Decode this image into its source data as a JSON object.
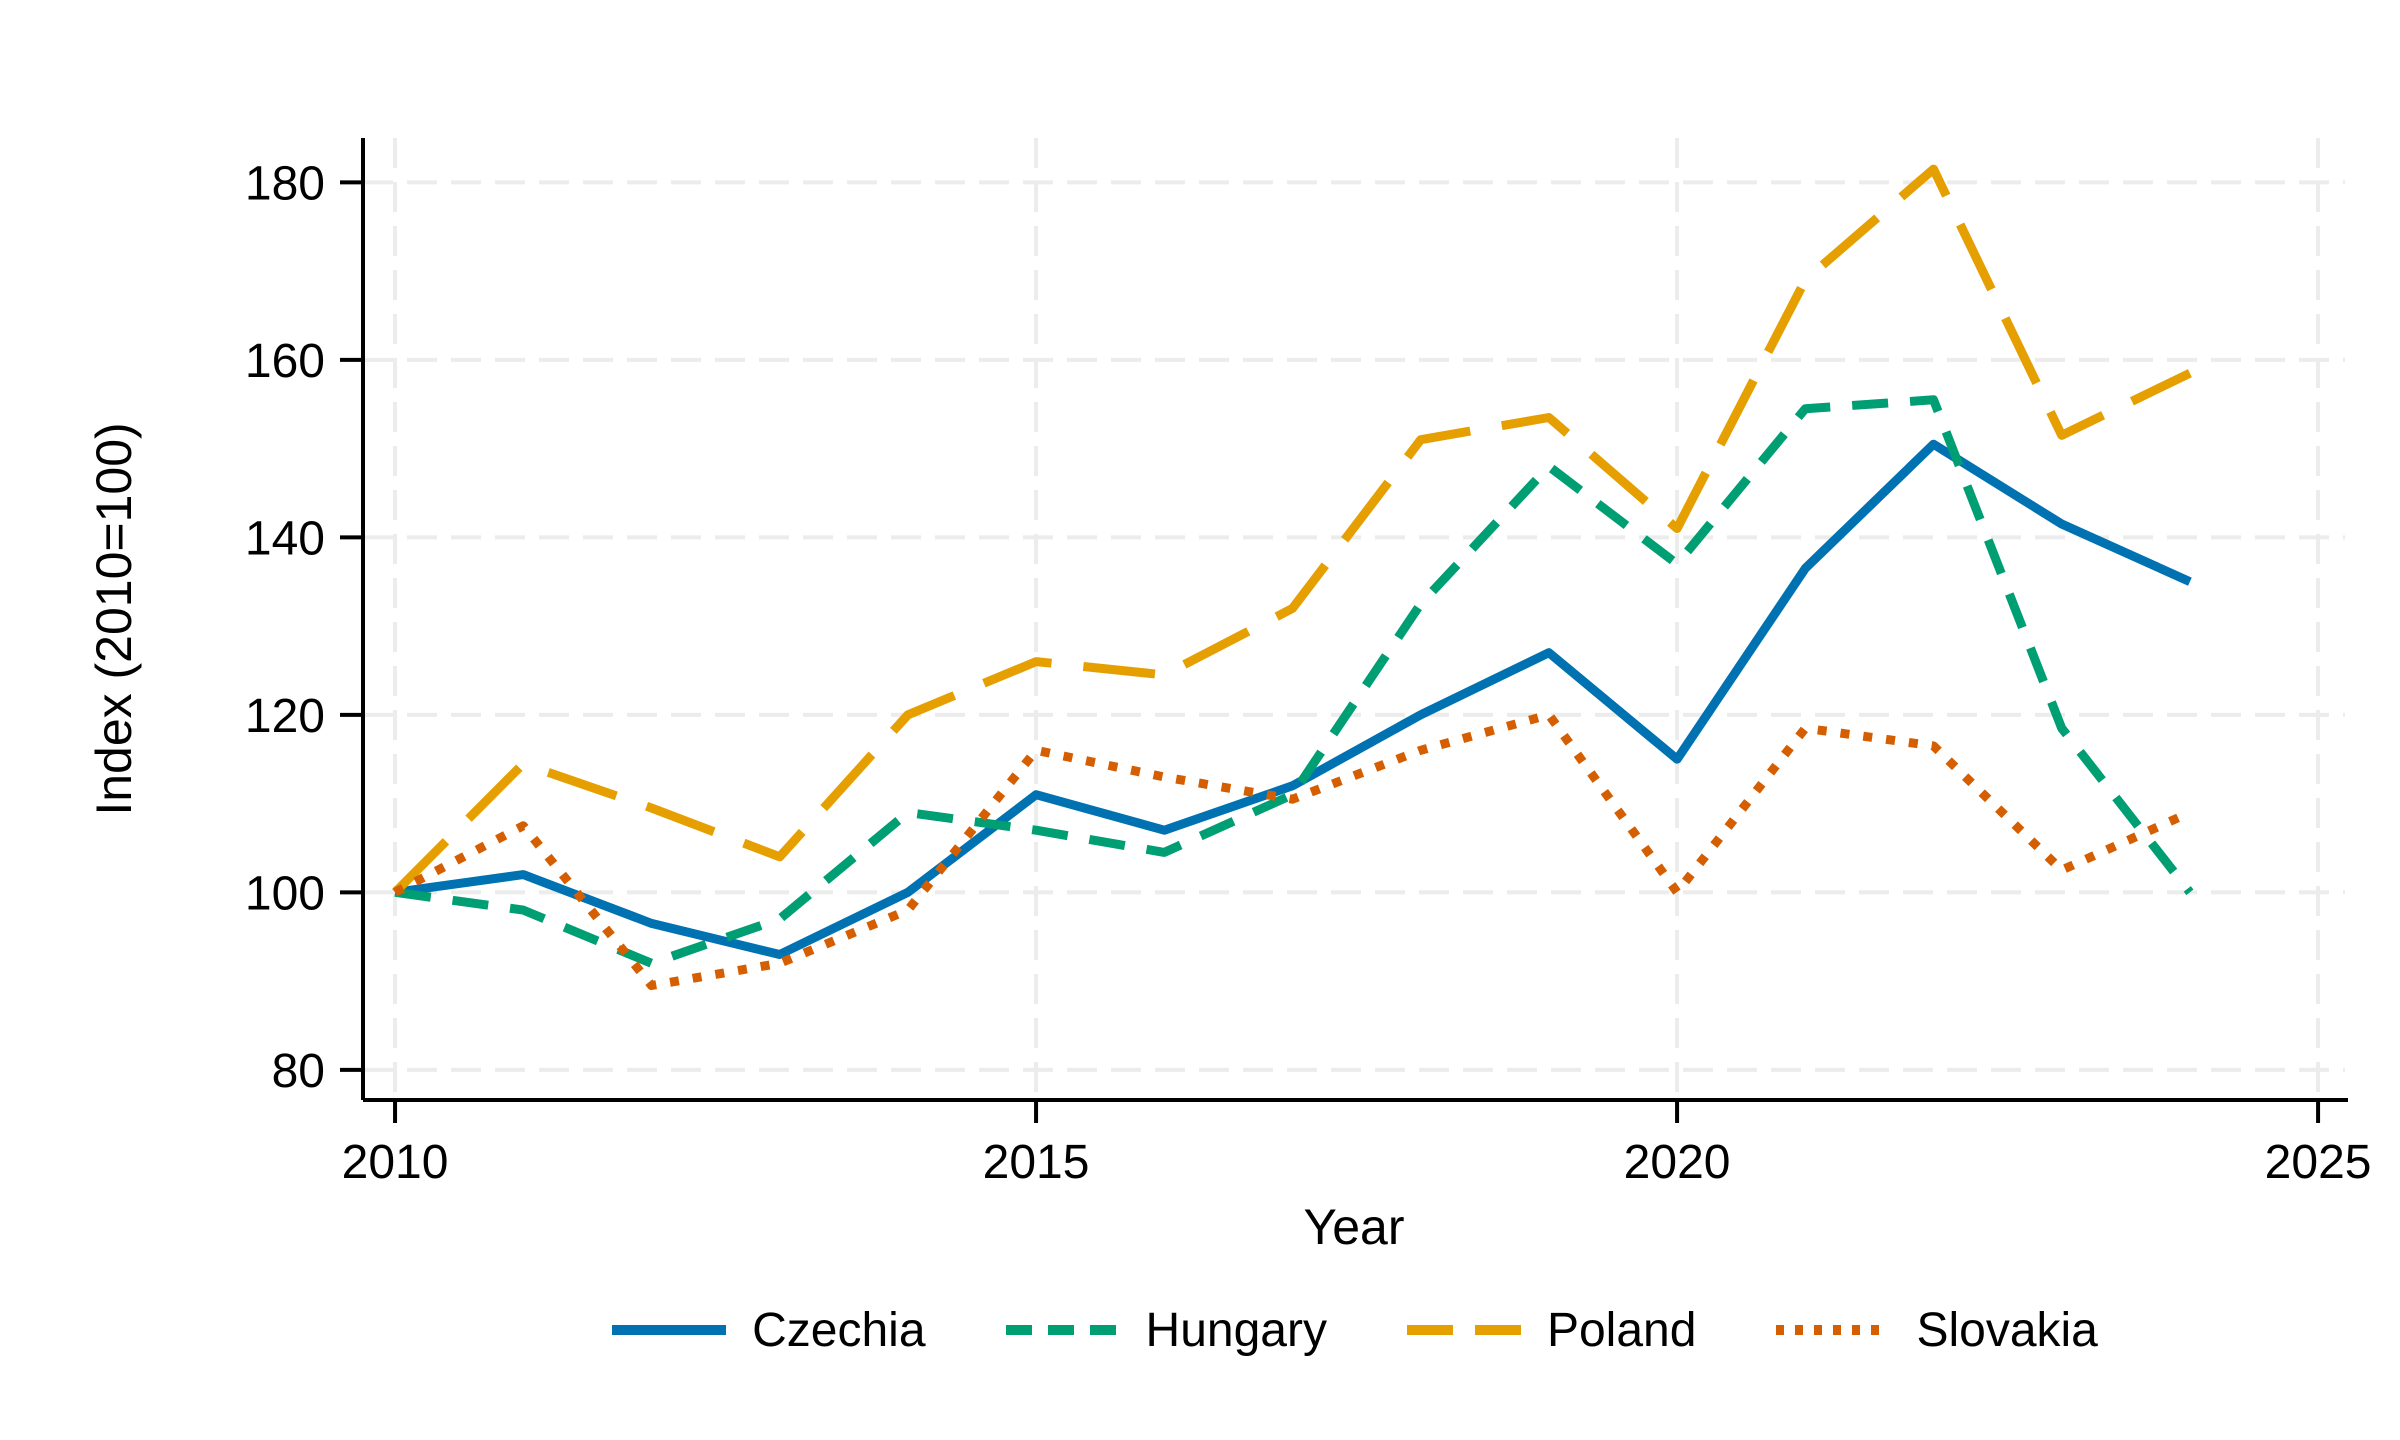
{
  "chart_data": {
    "type": "line",
    "title": "",
    "xlabel": "Year",
    "ylabel": "Index (2010=100)",
    "x": [
      2010,
      2011,
      2012,
      2013,
      2014,
      2015,
      2016,
      2017,
      2018,
      2019,
      2020,
      2021,
      2022,
      2023,
      2024
    ],
    "series": [
      {
        "name": "Czechia",
        "color": "#0072B2",
        "style": "solid",
        "values": [
          100,
          102,
          96.5,
          93,
          100,
          111,
          107,
          112,
          120,
          127,
          115,
          136.5,
          150.5,
          141.5,
          135
        ]
      },
      {
        "name": "Hungary",
        "color": "#009E73",
        "style": "dashed",
        "values": [
          100,
          98,
          92,
          97,
          109,
          107,
          104.5,
          111,
          132.5,
          148,
          137,
          154.5,
          155.5,
          118.5,
          100
        ]
      },
      {
        "name": "Poland",
        "color": "#E69F00",
        "style": "longdash",
        "values": [
          100,
          114.5,
          109.5,
          104,
          120,
          126,
          124.5,
          132,
          151,
          153.5,
          141,
          169,
          181.5,
          151.5,
          158.5
        ]
      },
      {
        "name": "Slovakia",
        "color": "#D55E00",
        "style": "dotted",
        "values": [
          100,
          107.5,
          89.5,
          92,
          98,
          116,
          113,
          110.5,
          116,
          120,
          100,
          118.5,
          116.5,
          102.5,
          109
        ]
      }
    ],
    "x_ticks": [
      2010,
      2015,
      2020,
      2025
    ],
    "y_ticks": [
      80,
      100,
      120,
      140,
      160,
      180
    ],
    "xlim": [
      2009.75,
      2025.21
    ],
    "ylim": [
      76.6,
      185.0
    ],
    "grid": true,
    "legend_position": "bottom",
    "colors": {
      "background": "#ffffff",
      "axis": "#000000",
      "gridline": "#ececec",
      "text": "#000000"
    }
  }
}
